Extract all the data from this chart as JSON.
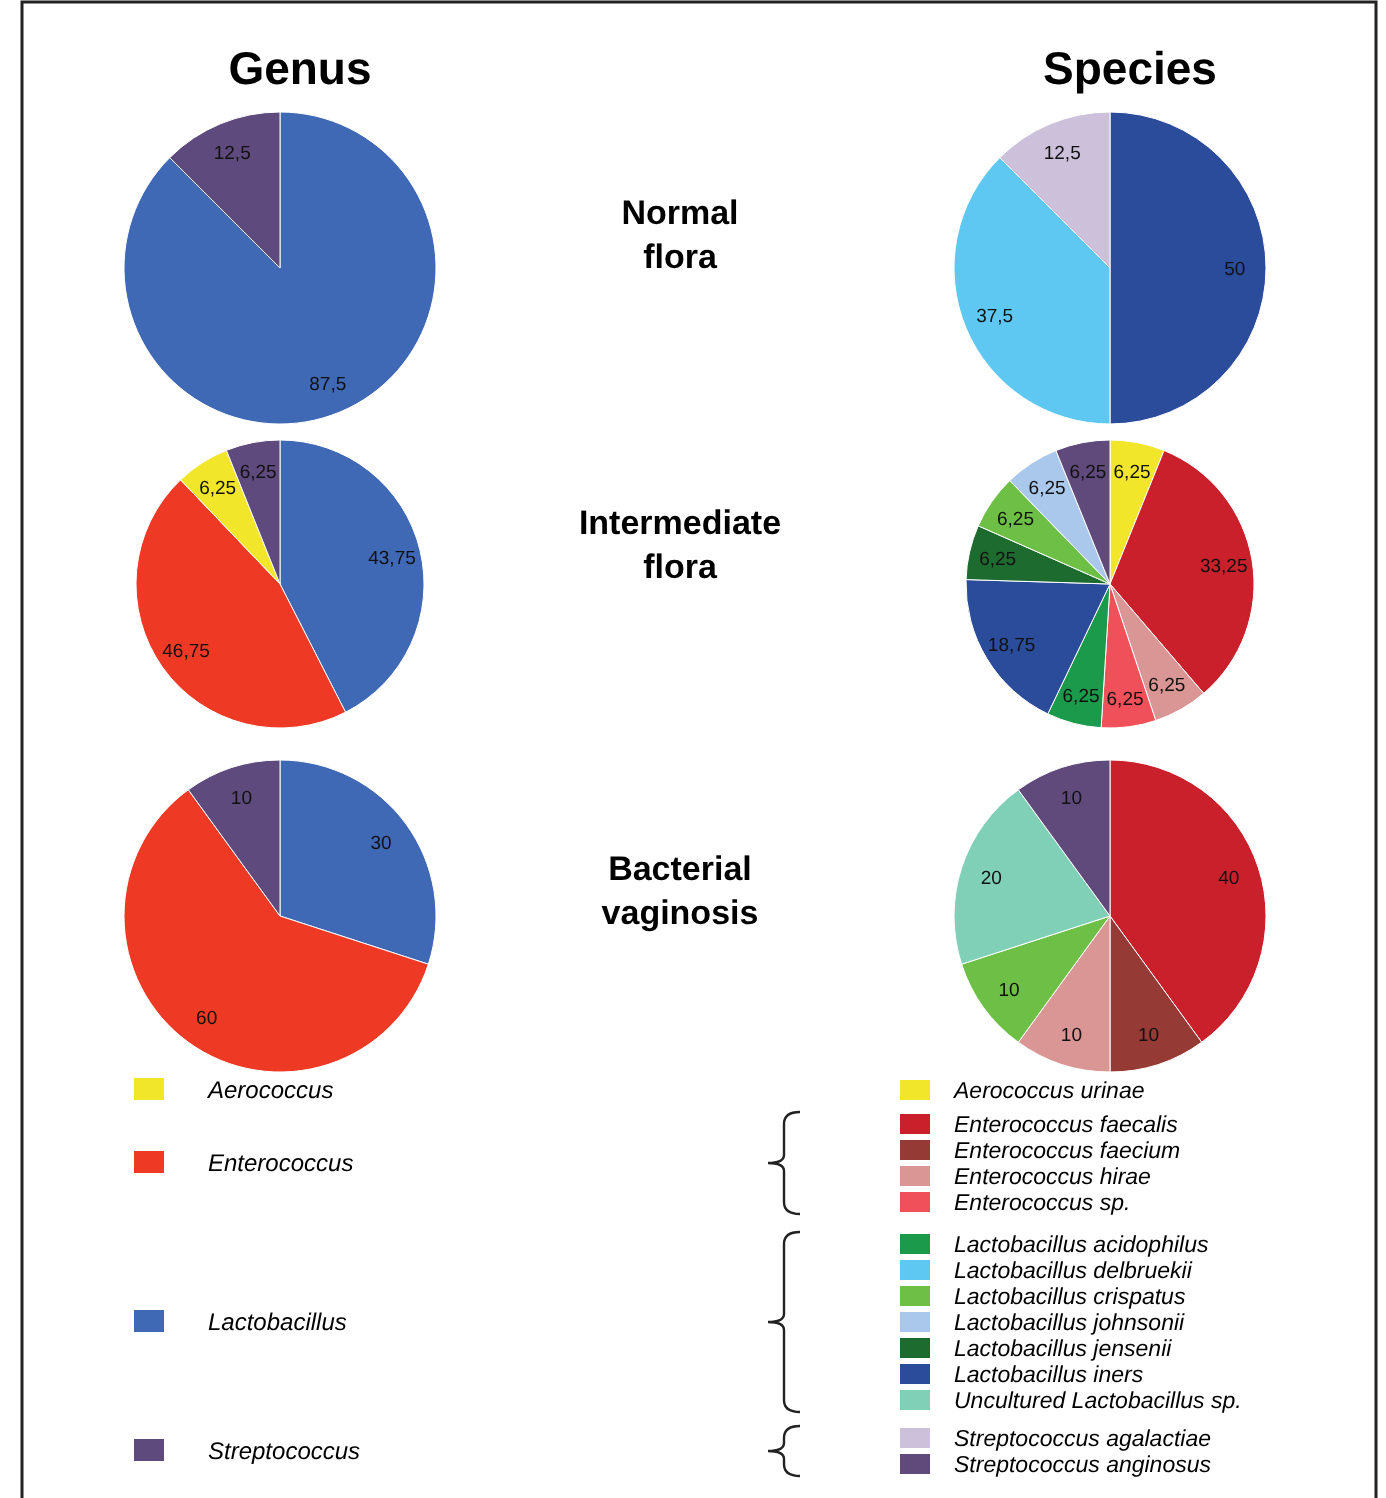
{
  "chart_data": [
    {
      "type": "pie",
      "title": "Genus",
      "categories": [
        null,
        null
      ],
      "values": [
        87.5,
        12.5
      ],
      "value_labels": [
        "87,5",
        "12,5"
      ],
      "colors": [
        "#3f68b5",
        "#5f4a7d"
      ],
      "legend": false
    },
    {
      "type": "pie",
      "title": "Species",
      "categories": [
        null,
        null,
        null
      ],
      "values": [
        50,
        37.5,
        12.5
      ],
      "value_labels": [
        "50",
        "37,5",
        "12,5"
      ],
      "colors": [
        "#2b4c9b",
        "#5ec8f2",
        "#ccc0da"
      ],
      "legend": false
    },
    {
      "type": "pie",
      "categories": [
        null,
        null,
        null,
        null
      ],
      "values": [
        43.75,
        46.75,
        6.25,
        6.25
      ],
      "value_labels": [
        "43,75",
        "46,75",
        "6,25",
        "6,25"
      ],
      "colors": [
        "#3f68b5",
        "#ee3a24",
        "#f1e629",
        "#5f4a7d"
      ],
      "legend": false
    },
    {
      "type": "pie",
      "categories": [
        null,
        null,
        null,
        null,
        null,
        null,
        null,
        null,
        null,
        null
      ],
      "values": [
        6.25,
        33.25,
        6.25,
        6.25,
        6.25,
        18.75,
        6.25,
        6.25,
        6.25,
        6.25
      ],
      "value_labels": [
        "6,25",
        "33,25",
        "6,25",
        "6,25",
        "6,25",
        "18,75",
        "6,25",
        "6,25",
        "6,25",
        "6,25"
      ],
      "colors": [
        "#f1e629",
        "#c9202b",
        "#d99694",
        "#f0505a",
        "#1a9a4a",
        "#2b4c9b",
        "#1e6b30",
        "#6dbf45",
        "#a9c8ec",
        "#604a7b"
      ],
      "legend": false
    },
    {
      "type": "pie",
      "categories": [
        null,
        null,
        null
      ],
      "values": [
        30,
        60,
        10
      ],
      "value_labels": [
        "30",
        "60",
        "10"
      ],
      "colors": [
        "#3f68b5",
        "#ee3a24",
        "#5f4a7d"
      ],
      "legend": false
    },
    {
      "type": "pie",
      "categories": [
        null,
        null,
        null,
        null,
        null,
        null
      ],
      "values": [
        40,
        10,
        10,
        10,
        20,
        10
      ],
      "value_labels": [
        "40",
        "10",
        "10",
        "10",
        "20",
        "10"
      ],
      "colors": [
        "#c9202b",
        "#953a35",
        "#d99694",
        "#6dbf45",
        "#80d0b8",
        "#604a7b"
      ],
      "legend": false
    },
    {
      "type": "other",
      "annotations": [
        "Normal flora",
        "Intermediate flora",
        "Bacterial vaginosis"
      ]
    },
    {
      "type": "other",
      "categories": [
        "Aerococcus",
        "Enterococcus",
        "Lactobacillus",
        "Streptococcus"
      ],
      "colors": [
        "#f1e629",
        "#ee3a24",
        "#3f68b5",
        "#5f4a7d"
      ]
    },
    {
      "type": "other",
      "categories": [
        "Aerococcus urinae",
        "Enterococcus faecalis",
        "Enterococcus faecium",
        "Enterococcus hirae",
        "Enterococcus sp.",
        "Lactobacillus acidophilus",
        "Lactobacillus delbruekii",
        "Lactobacillus crispatus",
        "Lactobacillus johnsonii",
        "Lactobacillus jensenii",
        "Lactobacillus iners",
        "Uncultured Lactobacillus sp.",
        "Streptococcus agalactiae",
        "Streptococcus anginosus"
      ],
      "colors": [
        "#f1e629",
        "#c9202b",
        "#953a35",
        "#d99694",
        "#f0505a",
        "#1a9a4a",
        "#5ec8f2",
        "#6dbf45",
        "#a9c8ec",
        "#1e6b30",
        "#2b4c9b",
        "#80d0b8",
        "#ccc0da",
        "#604a7b"
      ]
    }
  ]
}
